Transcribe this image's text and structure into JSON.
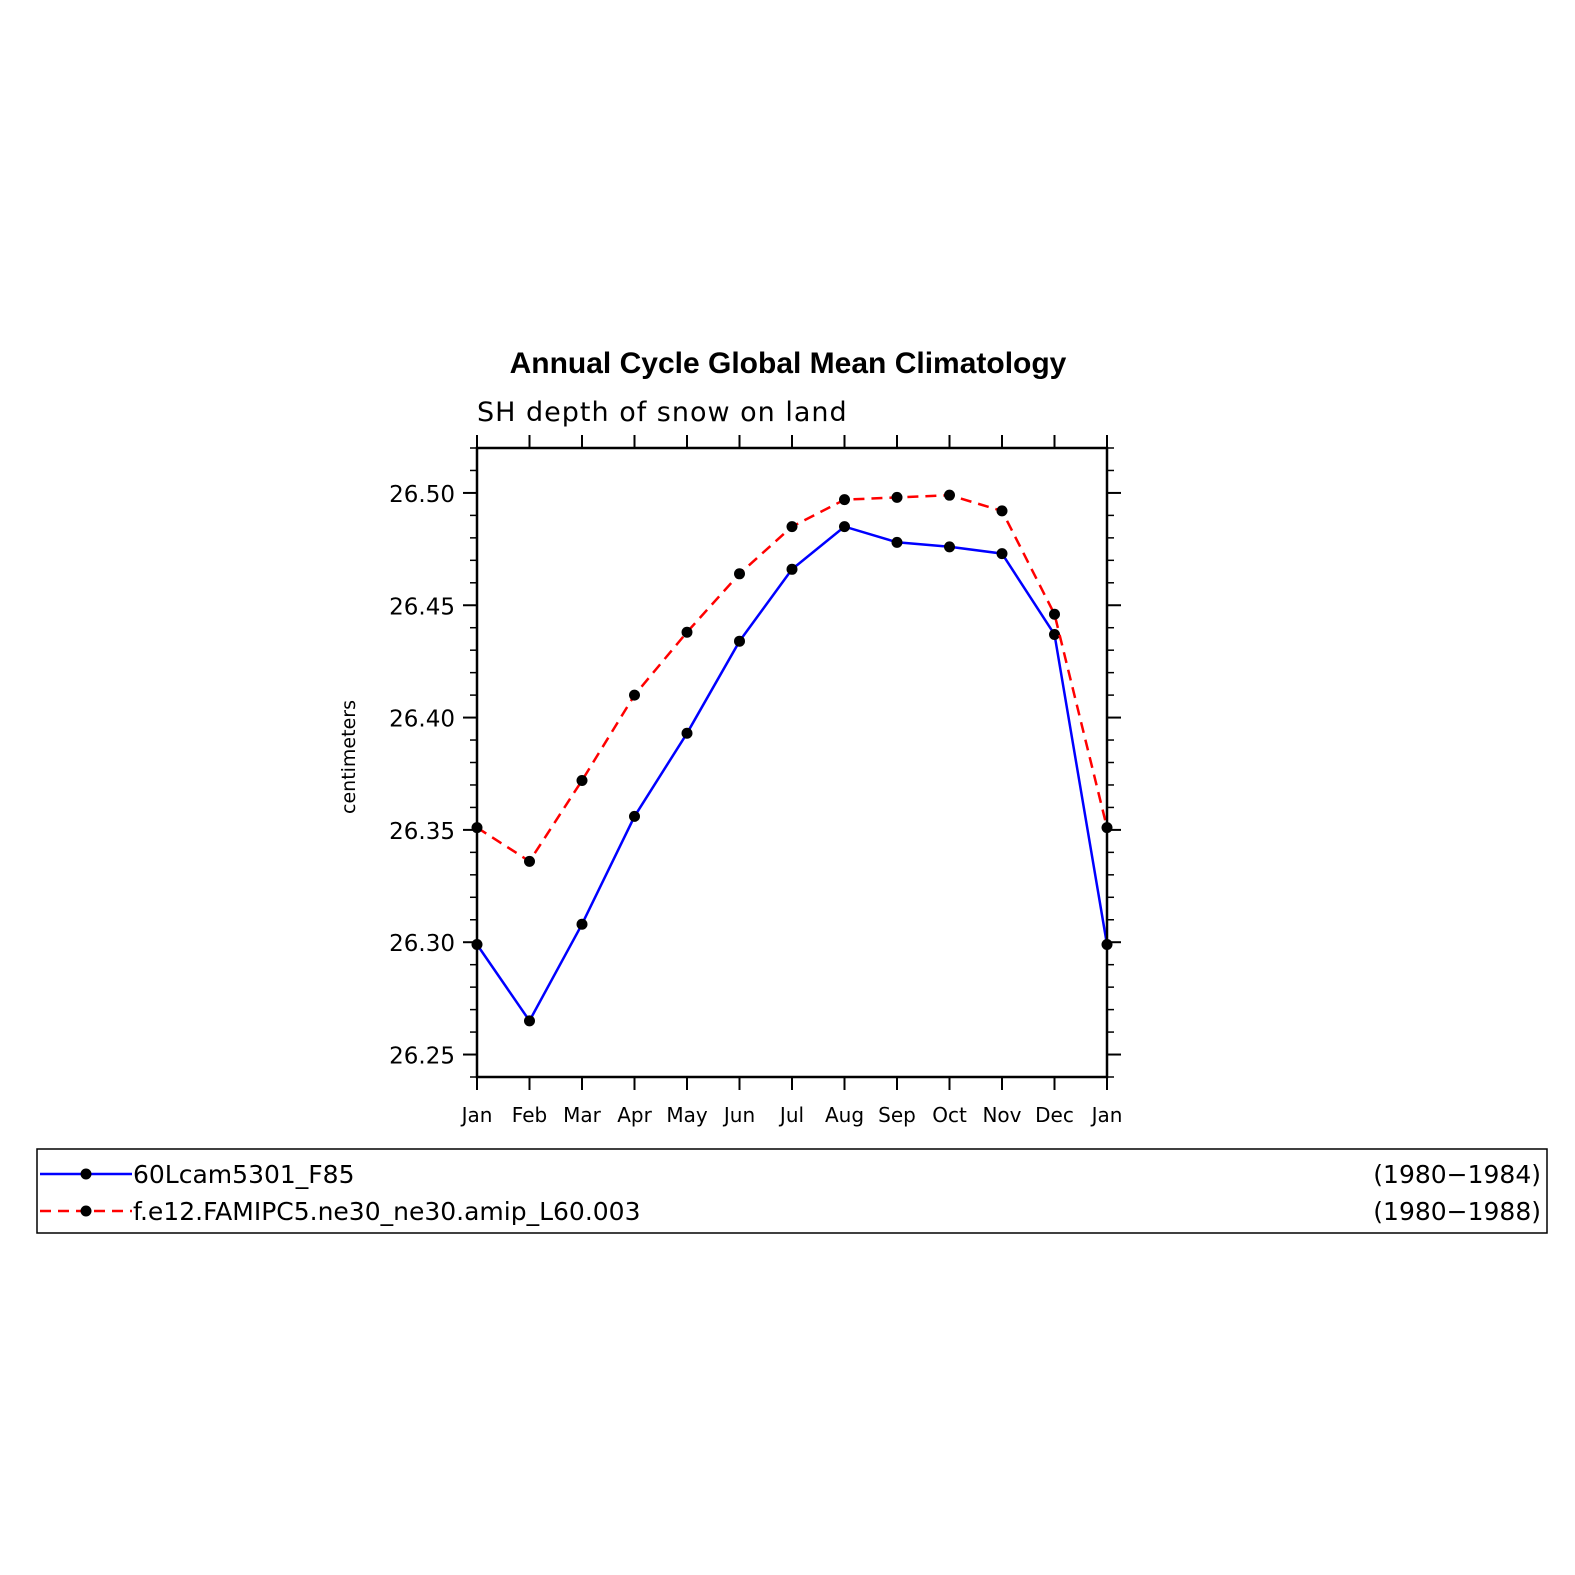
{
  "chart_data": {
    "type": "line",
    "title": "Annual Cycle Global Mean Climatology",
    "subtitle": "SH depth of snow on land",
    "ylabel": "centimeters",
    "xlabel": "",
    "categories": [
      "Jan",
      "Feb",
      "Mar",
      "Apr",
      "May",
      "Jun",
      "Jul",
      "Aug",
      "Sep",
      "Oct",
      "Nov",
      "Dec",
      "Jan"
    ],
    "ylim": [
      26.24,
      26.52
    ],
    "yticks": [
      "26.25",
      "26.30",
      "26.35",
      "26.40",
      "26.45",
      "26.50"
    ],
    "grid": false,
    "legend_position": "bottom",
    "series": [
      {
        "name": "60Lcam5301_F85",
        "period": "(1980−1984)",
        "color": "#0000ff",
        "line_style": "solid",
        "marker": "filled-circle",
        "values": [
          26.299,
          26.265,
          26.308,
          26.356,
          26.393,
          26.434,
          26.466,
          26.485,
          26.478,
          26.476,
          26.473,
          26.437,
          26.299
        ]
      },
      {
        "name": "f.e12.FAMIPC5.ne30_ne30.amip_L60.003",
        "period": "(1980−1988)",
        "color": "#ff0000",
        "line_style": "dashed",
        "marker": "filled-circle",
        "values": [
          26.351,
          26.336,
          26.372,
          26.41,
          26.438,
          26.464,
          26.485,
          26.497,
          26.498,
          26.499,
          26.492,
          26.446,
          26.351
        ]
      }
    ]
  }
}
